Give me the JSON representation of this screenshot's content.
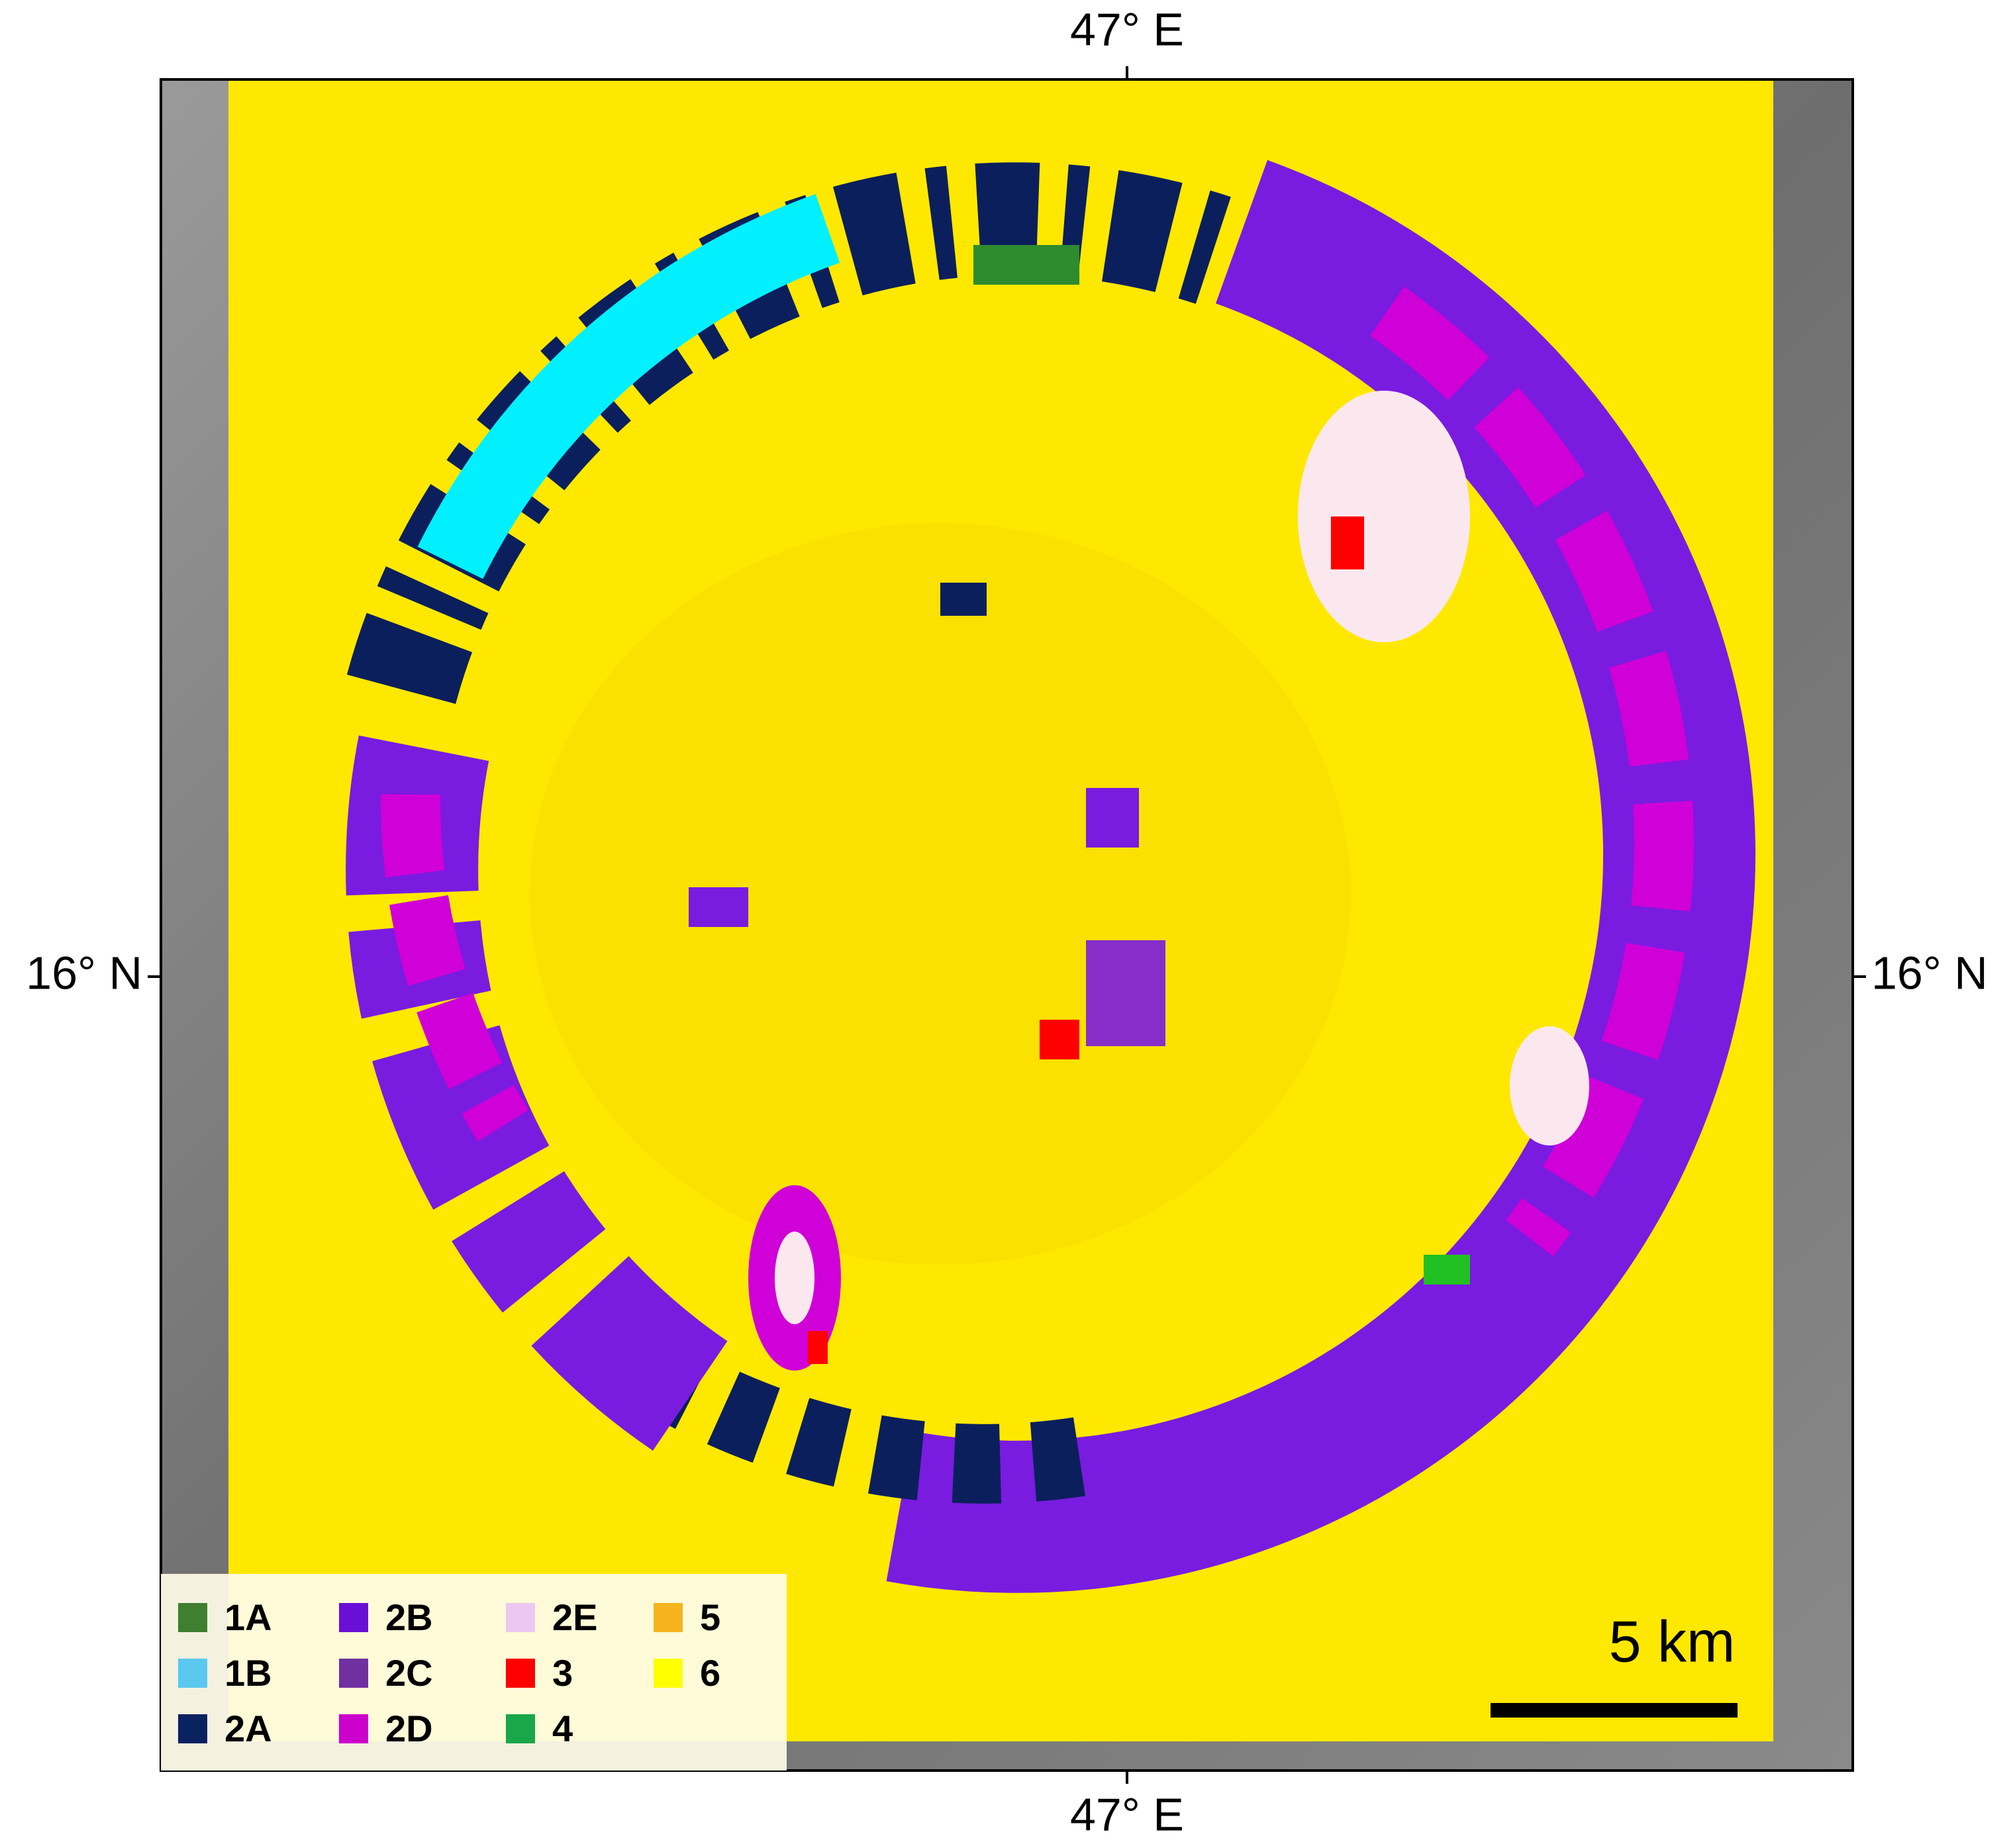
{
  "axes": {
    "top_label": "47° E",
    "bottom_label": "47° E",
    "left_label": "16° N",
    "right_label": "16° N"
  },
  "legend": [
    {
      "label": "1A",
      "color": "#3f7f2f"
    },
    {
      "label": "1B",
      "color": "#5bc8f0"
    },
    {
      "label": "2A",
      "color": "#0b2260"
    },
    {
      "label": "2B",
      "color": "#6a0fd6"
    },
    {
      "label": "2C",
      "color": "#7030a0"
    },
    {
      "label": "2D",
      "color": "#cc00cc"
    },
    {
      "label": "2E",
      "color": "#ecc8f0"
    },
    {
      "label": "3",
      "color": "#ff0000"
    },
    {
      "label": "4",
      "color": "#1aa64a"
    },
    {
      "label": "5",
      "color": "#f5b41e"
    },
    {
      "label": "6",
      "color": "#ffff00"
    }
  ],
  "scale_bar": {
    "label": "5 km"
  }
}
